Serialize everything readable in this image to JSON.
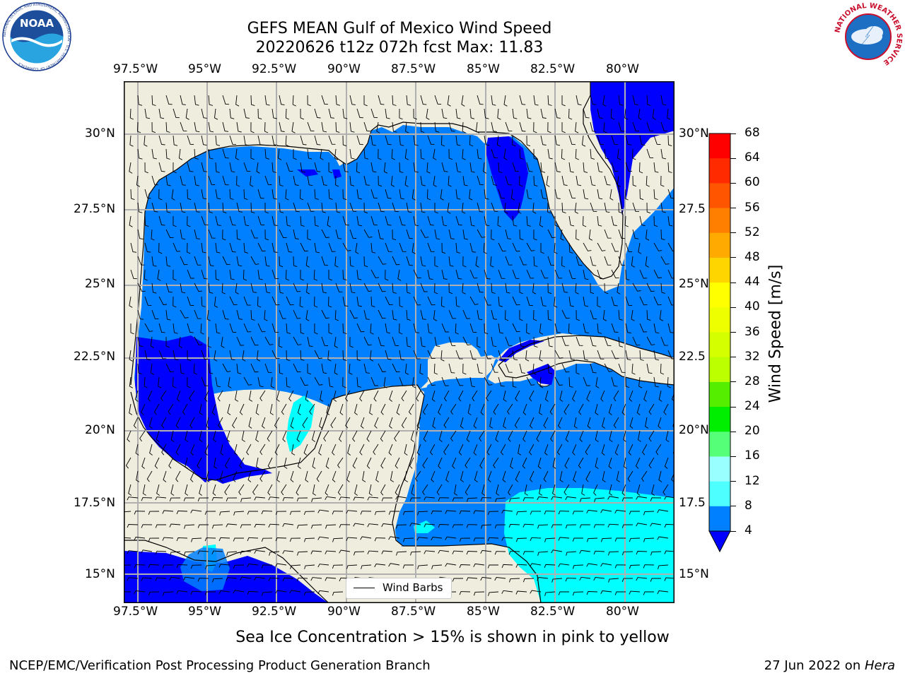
{
  "title": {
    "line1": "GEFS MEAN Gulf of Mexico Wind Speed",
    "line2": "20220626 t12z 072h fcst   Max: 11.83"
  },
  "logos": {
    "noaa": {
      "text": "NOAA",
      "ring_text": "NATIONAL OCEANIC AND ATMOSPHERIC ADMINISTRATION · U.S. DEPARTMENT OF COMMERCE"
    },
    "nws": {
      "ring_text": "NATIONAL WEATHER SERVICE"
    }
  },
  "map": {
    "lon_labels": [
      "97.5°W",
      "95°W",
      "92.5°W",
      "90°W",
      "87.5°W",
      "85°W",
      "82.5°W",
      "80°W"
    ],
    "lat_labels_left": [
      "30°N",
      "27.5°N",
      "25°N",
      "22.5°N",
      "20°N",
      "17.5°N",
      "15°N"
    ],
    "lat_labels_right": [
      "30°N",
      "27.5",
      "25°N",
      "22.5",
      "20°N",
      "17.5",
      "15°N"
    ],
    "legend_label": "Wind Barbs",
    "colors": {
      "land": "#efedde",
      "speed_4_8": "#0080ff",
      "speed_below_4": "#0000ff",
      "speed_8_12": "#00ffff",
      "speed_12_16": "#4dffff"
    }
  },
  "colorbar": {
    "label": "Wind Speed [m/s]",
    "ticks": [
      "68",
      "64",
      "60",
      "56",
      "52",
      "48",
      "44",
      "40",
      "36",
      "32",
      "28",
      "24",
      "20",
      "16",
      "12",
      "8",
      "4"
    ],
    "colors": [
      "#ff0000",
      "#ff2a00",
      "#ff5500",
      "#ff8000",
      "#ffaa00",
      "#ffd500",
      "#ffff00",
      "#eeff00",
      "#d4ff00",
      "#bbff00",
      "#55ee00",
      "#00ee00",
      "#55ff77",
      "#99ffff",
      "#4dffff",
      "#00ffff",
      "#0080ff"
    ],
    "under_color": "#0000ff"
  },
  "notes": {
    "sea_ice": "Sea Ice Concentration > 15% is shown in pink to yellow",
    "producer": "NCEP/EMC/Verification Post Processing Product Generation Branch",
    "date": "27 Jun 2022 on ",
    "machine": "Hera"
  }
}
